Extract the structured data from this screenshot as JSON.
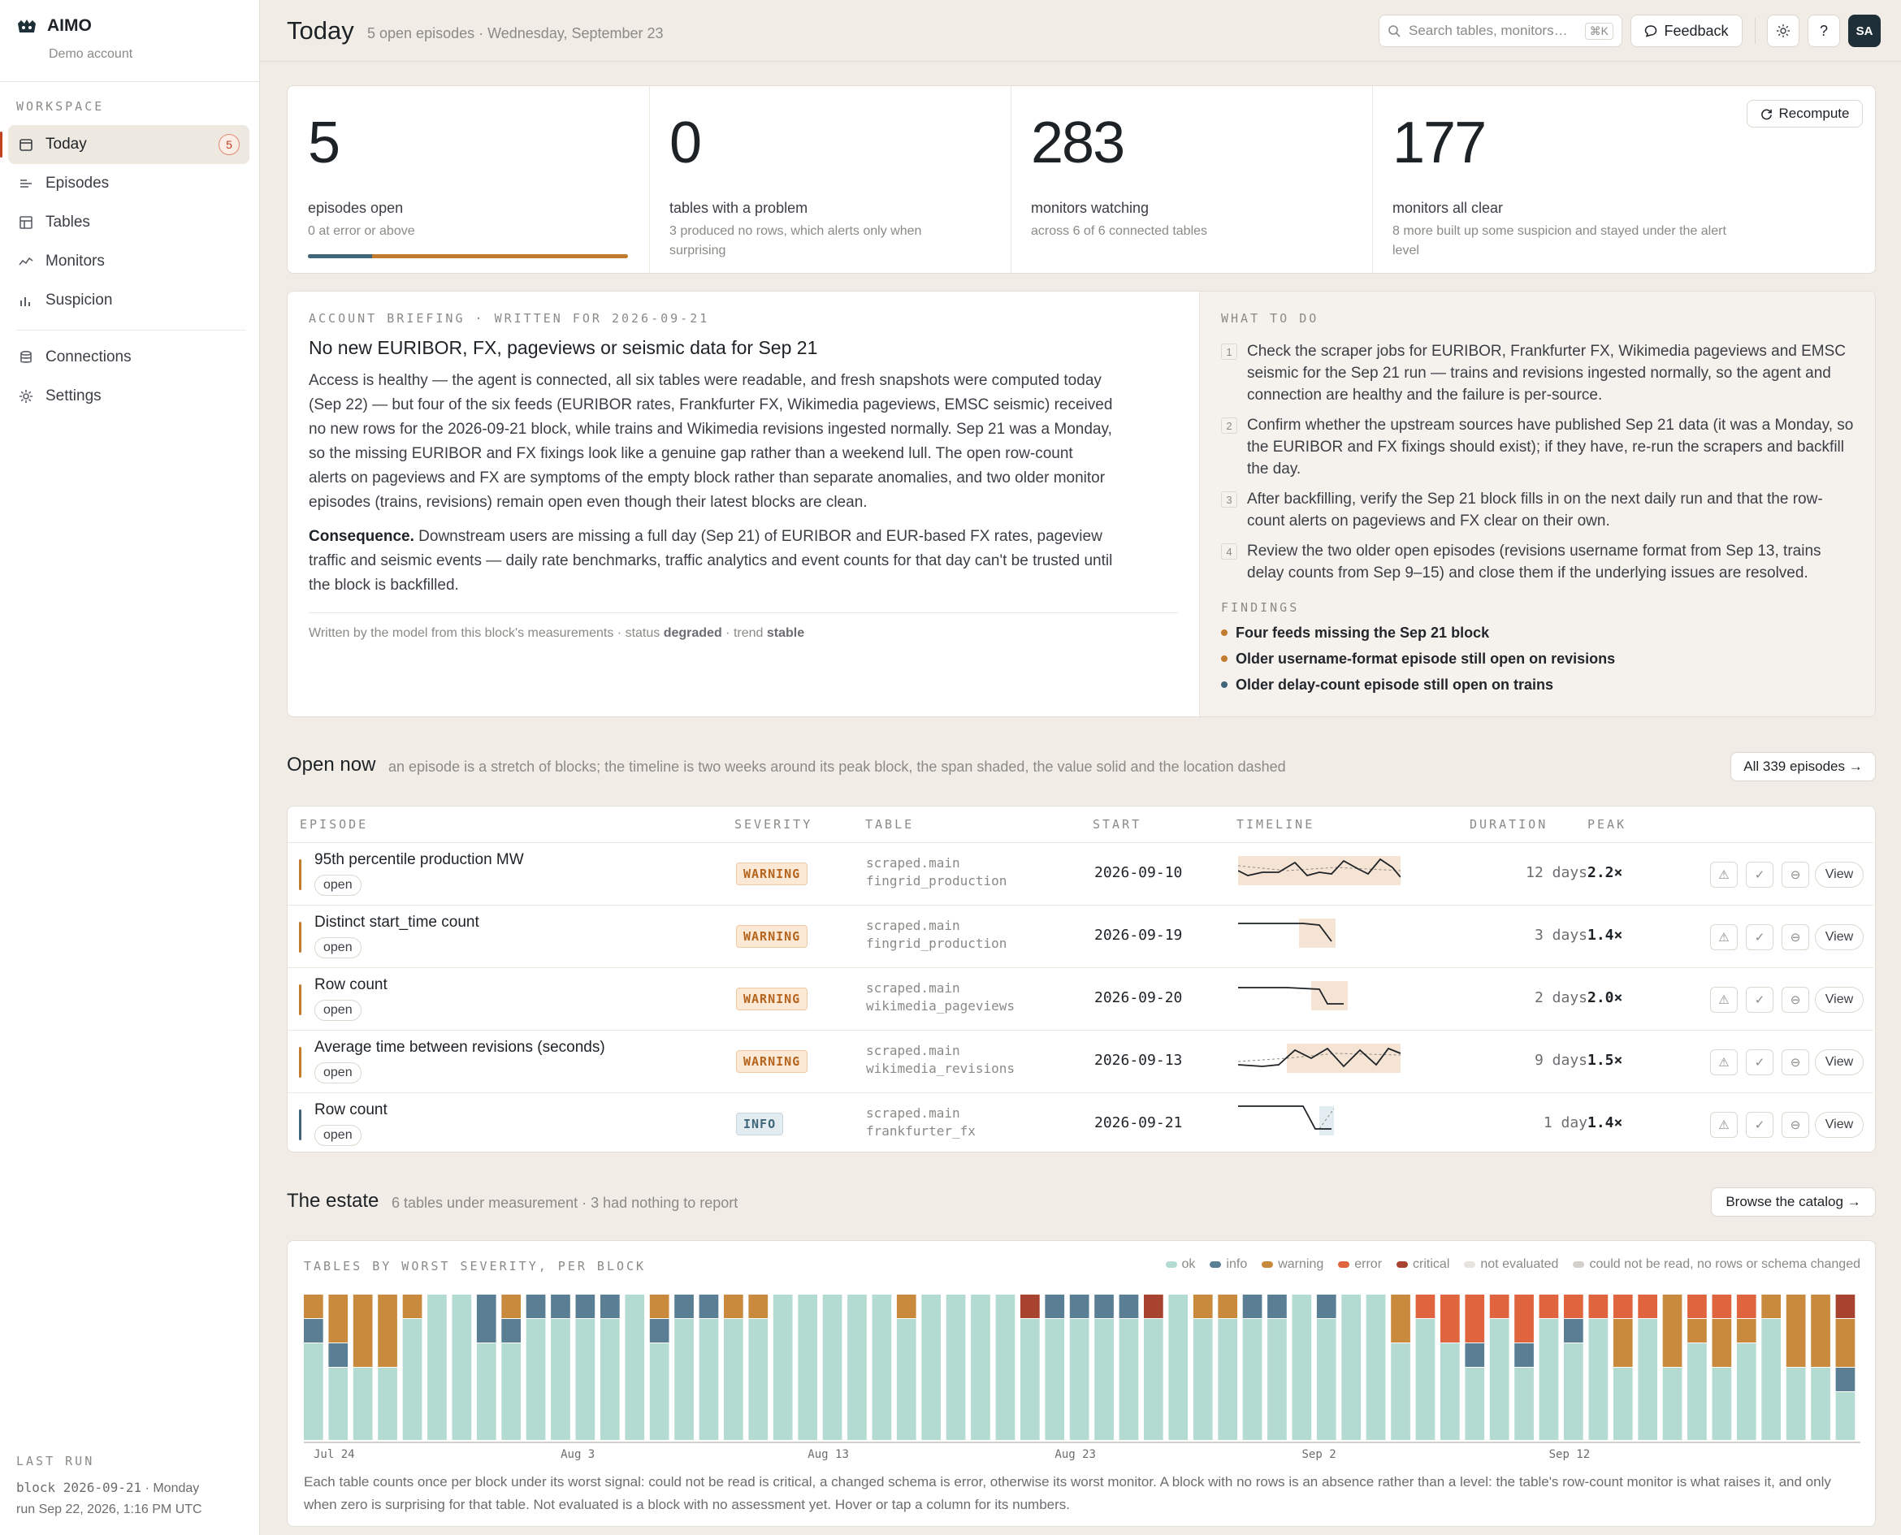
{
  "app": {
    "name": "AIMO",
    "account": "Demo account"
  },
  "sidebar": {
    "section_label": "WORKSPACE",
    "items": [
      {
        "label": "Today",
        "badge": "5",
        "icon": "calendar-icon"
      },
      {
        "label": "Episodes",
        "icon": "list-icon"
      },
      {
        "label": "Tables",
        "icon": "table-icon"
      },
      {
        "label": "Monitors",
        "icon": "activity-icon"
      },
      {
        "label": "Suspicion",
        "icon": "bar-chart-icon"
      }
    ],
    "secondary": [
      {
        "label": "Connections",
        "icon": "database-icon"
      },
      {
        "label": "Settings",
        "icon": "gear-icon"
      }
    ],
    "last_run": {
      "label": "LAST RUN",
      "block": "block 2026-09-21",
      "weekday": "· Monday",
      "run": "run Sep 22, 2026, 1:16 PM UTC"
    }
  },
  "header": {
    "title": "Today",
    "subtitle": "5 open episodes · Wednesday, September 23",
    "search_placeholder": "Search tables, monitors…",
    "search_shortcut": "⌘K",
    "feedback": "Feedback",
    "help": "?",
    "avatar": "SA"
  },
  "kpis": [
    {
      "value": "5",
      "label": "episodes open",
      "sub": "0 at error or above",
      "progress_info_fraction": 0.2
    },
    {
      "value": "0",
      "label": "tables with a problem",
      "sub": "3 produced no rows, which alerts only when surprising"
    },
    {
      "value": "283",
      "label": "monitors watching",
      "sub": "across 6 of 6 connected tables"
    },
    {
      "value": "177",
      "label": "monitors all clear",
      "sub": "8 more built up some suspicion and stayed under the alert level"
    }
  ],
  "recompute": "Recompute",
  "briefing": {
    "eyebrow": "ACCOUNT BRIEFING · WRITTEN FOR 2026-09-21",
    "title": "No new EURIBOR, FX, pageviews or seismic data for Sep 21",
    "body": "Access is healthy — the agent is connected, all six tables were readable, and fresh snapshots were computed today (Sep 22) — but four of the six feeds (EURIBOR rates, Frankfurter FX, Wikimedia pageviews, EMSC seismic) received no new rows for the 2026-09-21 block, while trains and Wikimedia revisions ingested normally. Sep 21 was a Monday, so the missing EURIBOR and FX fixings look like a genuine gap rather than a weekend lull. The open row-count alerts on pageviews and FX are symptoms of the empty block rather than separate anomalies, and two older monitor episodes (trains, revisions) remain open even though their latest blocks are clean.",
    "consequence_label": "Consequence.",
    "consequence": " Downstream users are missing a full day (Sep 21) of EURIBOR and EUR-based FX rates, pageview traffic and seismic events — daily rate benchmarks, traffic analytics and event counts for that day can't be trusted until the block is backfilled.",
    "footer_prefix": "Written by the model from this block's measurements · status ",
    "status": "degraded",
    "footer_mid": " · trend ",
    "trend": "stable"
  },
  "todo": {
    "eyebrow": "WHAT TO DO",
    "items": [
      "Check the scraper jobs for EURIBOR, Frankfurter FX, Wikimedia pageviews and EMSC seismic for the Sep 21 run — trains and revisions ingested normally, so the agent and connection are healthy and the failure is per-source.",
      "Confirm whether the upstream sources have published Sep 21 data (it was a Monday, so the EURIBOR and FX fixings should exist); if they have, re-run the scrapers and backfill the day.",
      "After backfilling, verify the Sep 21 block fills in on the next daily run and that the row-count alerts on pageviews and FX clear on their own.",
      "Review the two older open episodes (revisions username format from Sep 13, trains delay counts from Sep 9–15) and close them if the underlying issues are resolved."
    ],
    "findings_label": "FINDINGS",
    "findings": [
      {
        "text": "Four feeds missing the Sep 21 block",
        "color": "#c27c2e"
      },
      {
        "text": "Older username-format episode still open on revisions",
        "color": "#c27c2e"
      },
      {
        "text": "Older delay-count episode still open on trains",
        "color": "#3f6579"
      }
    ]
  },
  "open_now": {
    "title": "Open now",
    "subtitle": "an episode is a stretch of blocks; the timeline is two weeks around its peak block, the span shaded, the value solid and the location dashed",
    "all_button": "All 339 episodes →",
    "columns": [
      "EPISODE",
      "SEVERITY",
      "TABLE",
      "START",
      "TIMELINE",
      "DURATION",
      "PEAK"
    ],
    "rows": [
      {
        "name": "95th percentile production MW",
        "status": "open",
        "severity": "WARNING",
        "schema": "scraped.main",
        "table": "fingrid_production",
        "start": "2026-09-10",
        "duration": "12 days",
        "peak": "2.2×",
        "view": "View"
      },
      {
        "name": "Distinct start_time count",
        "status": "open",
        "severity": "WARNING",
        "schema": "scraped.main",
        "table": "fingrid_production",
        "start": "2026-09-19",
        "duration": "3 days",
        "peak": "1.4×",
        "view": "View"
      },
      {
        "name": "Row count",
        "status": "open",
        "severity": "WARNING",
        "schema": "scraped.main",
        "table": "wikimedia_pageviews",
        "start": "2026-09-20",
        "duration": "2 days",
        "peak": "2.0×",
        "view": "View"
      },
      {
        "name": "Average time between revisions (seconds)",
        "status": "open",
        "severity": "WARNING",
        "schema": "scraped.main",
        "table": "wikimedia_revisions",
        "start": "2026-09-13",
        "duration": "9 days",
        "peak": "1.5×",
        "view": "View"
      },
      {
        "name": "Row count",
        "status": "open",
        "severity": "INFO",
        "schema": "scraped.main",
        "table": "frankfurter_fx",
        "start": "2026-09-21",
        "duration": "1 day",
        "peak": "1.4×",
        "view": "View"
      }
    ]
  },
  "estate": {
    "title": "The estate",
    "subtitle": "6 tables under measurement · 3 had nothing to report",
    "browse": "Browse the catalog →",
    "chart_title": "TABLES BY WORST SEVERITY, PER BLOCK",
    "legend": [
      {
        "label": "ok",
        "color": "#b3dbd1"
      },
      {
        "label": "info",
        "color": "#5a7f94"
      },
      {
        "label": "warning",
        "color": "#c98a3e"
      },
      {
        "label": "error",
        "color": "#e0643e"
      },
      {
        "label": "critical",
        "color": "#a8432f"
      },
      {
        "label": "not evaluated",
        "color": "#e6e3de"
      },
      {
        "label": "could not be read, no rows or schema changed",
        "color": "#d3d0cb"
      }
    ],
    "footnote": "Each table counts once per block under its worst signal: could not be read is critical, a changed schema is error, otherwise its worst monitor. A block with no rows is an absence rather than a level: the table's row-count monitor is what raises it, and only when zero is surprising for that table. Not evaluated is a block with no assessment yet. Hover or tap a column for its numbers."
  },
  "chart_data": {
    "type": "bar",
    "title": "TABLES BY WORST SEVERITY, PER BLOCK",
    "stacked": true,
    "x_tick_labels": [
      "Jul 24",
      "Aug 3",
      "Aug 13",
      "Aug 23",
      "Sep 2",
      "Sep 12"
    ],
    "ylim": [
      0,
      6
    ],
    "series_order": [
      "ok",
      "info",
      "warning",
      "error",
      "critical"
    ],
    "blocks": [
      [
        4,
        1,
        1,
        0,
        0
      ],
      [
        3,
        1,
        2,
        0,
        0
      ],
      [
        3,
        0,
        3,
        0,
        0
      ],
      [
        3,
        0,
        3,
        0,
        0
      ],
      [
        5,
        0,
        1,
        0,
        0
      ],
      [
        6,
        0,
        0,
        0,
        0
      ],
      [
        6,
        0,
        0,
        0,
        0
      ],
      [
        4,
        2,
        0,
        0,
        0
      ],
      [
        4,
        1,
        1,
        0,
        0
      ],
      [
        5,
        1,
        0,
        0,
        0
      ],
      [
        5,
        1,
        0,
        0,
        0
      ],
      [
        5,
        1,
        0,
        0,
        0
      ],
      [
        5,
        1,
        0,
        0,
        0
      ],
      [
        6,
        0,
        0,
        0,
        0
      ],
      [
        4,
        1,
        1,
        0,
        0
      ],
      [
        5,
        1,
        0,
        0,
        0
      ],
      [
        5,
        1,
        0,
        0,
        0
      ],
      [
        5,
        0,
        1,
        0,
        0
      ],
      [
        5,
        0,
        1,
        0,
        0
      ],
      [
        6,
        0,
        0,
        0,
        0
      ],
      [
        6,
        0,
        0,
        0,
        0
      ],
      [
        6,
        0,
        0,
        0,
        0
      ],
      [
        6,
        0,
        0,
        0,
        0
      ],
      [
        6,
        0,
        0,
        0,
        0
      ],
      [
        5,
        0,
        1,
        0,
        0
      ],
      [
        6,
        0,
        0,
        0,
        0
      ],
      [
        6,
        0,
        0,
        0,
        0
      ],
      [
        6,
        0,
        0,
        0,
        0
      ],
      [
        6,
        0,
        0,
        0,
        0
      ],
      [
        5,
        0,
        0,
        0,
        1
      ],
      [
        5,
        1,
        0,
        0,
        0
      ],
      [
        5,
        1,
        0,
        0,
        0
      ],
      [
        5,
        1,
        0,
        0,
        0
      ],
      [
        5,
        1,
        0,
        0,
        0
      ],
      [
        5,
        0,
        0,
        0,
        1
      ],
      [
        6,
        0,
        0,
        0,
        0
      ],
      [
        5,
        0,
        1,
        0,
        0
      ],
      [
        5,
        0,
        1,
        0,
        0
      ],
      [
        5,
        1,
        0,
        0,
        0
      ],
      [
        5,
        1,
        0,
        0,
        0
      ],
      [
        6,
        0,
        0,
        0,
        0
      ],
      [
        5,
        1,
        0,
        0,
        0
      ],
      [
        6,
        0,
        0,
        0,
        0
      ],
      [
        6,
        0,
        0,
        0,
        0
      ],
      [
        4,
        0,
        2,
        0,
        0
      ],
      [
        5,
        0,
        0,
        1,
        0
      ],
      [
        4,
        0,
        0,
        2,
        0
      ],
      [
        3,
        1,
        0,
        2,
        0
      ],
      [
        5,
        0,
        0,
        1,
        0
      ],
      [
        3,
        1,
        0,
        2,
        0
      ],
      [
        5,
        0,
        0,
        1,
        0
      ],
      [
        4,
        1,
        0,
        1,
        0
      ],
      [
        5,
        0,
        0,
        1,
        0
      ],
      [
        3,
        0,
        2,
        1,
        0
      ],
      [
        5,
        0,
        0,
        1,
        0
      ],
      [
        3,
        0,
        3,
        0,
        0
      ],
      [
        4,
        0,
        1,
        1,
        0
      ],
      [
        3,
        0,
        2,
        1,
        0
      ],
      [
        4,
        0,
        1,
        1,
        0
      ],
      [
        5,
        0,
        1,
        0,
        0
      ],
      [
        3,
        0,
        3,
        0,
        0
      ],
      [
        3,
        0,
        3,
        0,
        0
      ],
      [
        2,
        1,
        2,
        0,
        1
      ]
    ]
  }
}
